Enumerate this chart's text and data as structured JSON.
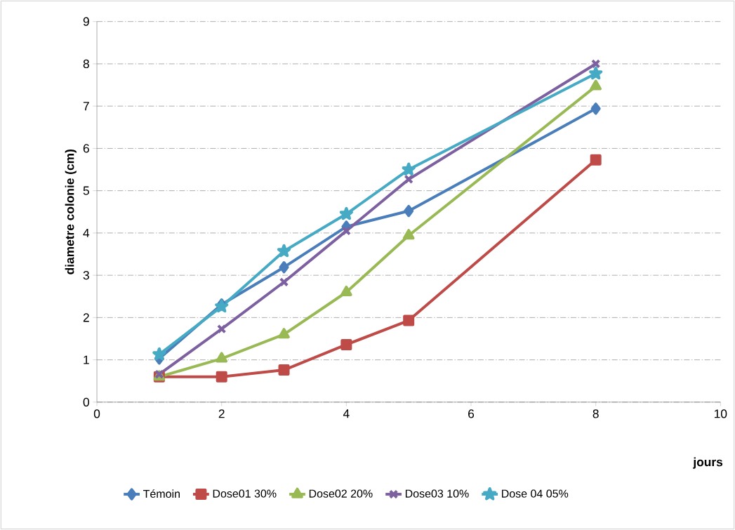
{
  "chart_data": {
    "type": "line",
    "xlabel": "jours",
    "ylabel": "diametre colonie (cm)",
    "xlim": [
      0,
      10
    ],
    "xticks": [
      0,
      2,
      4,
      6,
      8,
      10
    ],
    "ylim": [
      0,
      9
    ],
    "yticks": [
      0,
      1,
      2,
      3,
      4,
      5,
      6,
      7,
      8,
      9
    ],
    "x": [
      1,
      2,
      3,
      4,
      5,
      8
    ],
    "grid": "y",
    "legend": "bottom",
    "line_style": "solid",
    "series": [
      {
        "name": "Témoin",
        "color": "#4a7ebb",
        "marker": "diamond",
        "values": [
          1.03,
          2.31,
          3.19,
          4.15,
          4.52,
          6.94
        ]
      },
      {
        "name": "Dose01 30%",
        "color": "#be4b48",
        "marker": "square",
        "values": [
          0.6,
          0.6,
          0.76,
          1.36,
          1.93,
          5.73
        ]
      },
      {
        "name": "Dose02 20%",
        "color": "#98b954",
        "marker": "triangle",
        "values": [
          0.6,
          1.03,
          1.6,
          2.6,
          3.94,
          7.47
        ]
      },
      {
        "name": "Dose03 10%",
        "color": "#7d60a0",
        "marker": "cross",
        "values": [
          0.66,
          1.73,
          2.84,
          4.05,
          5.27,
          8.0
        ]
      },
      {
        "name": "Dose 04 05%",
        "color": "#46aac5",
        "marker": "star",
        "values": [
          1.13,
          2.26,
          3.57,
          4.45,
          5.5,
          7.77
        ]
      }
    ]
  }
}
